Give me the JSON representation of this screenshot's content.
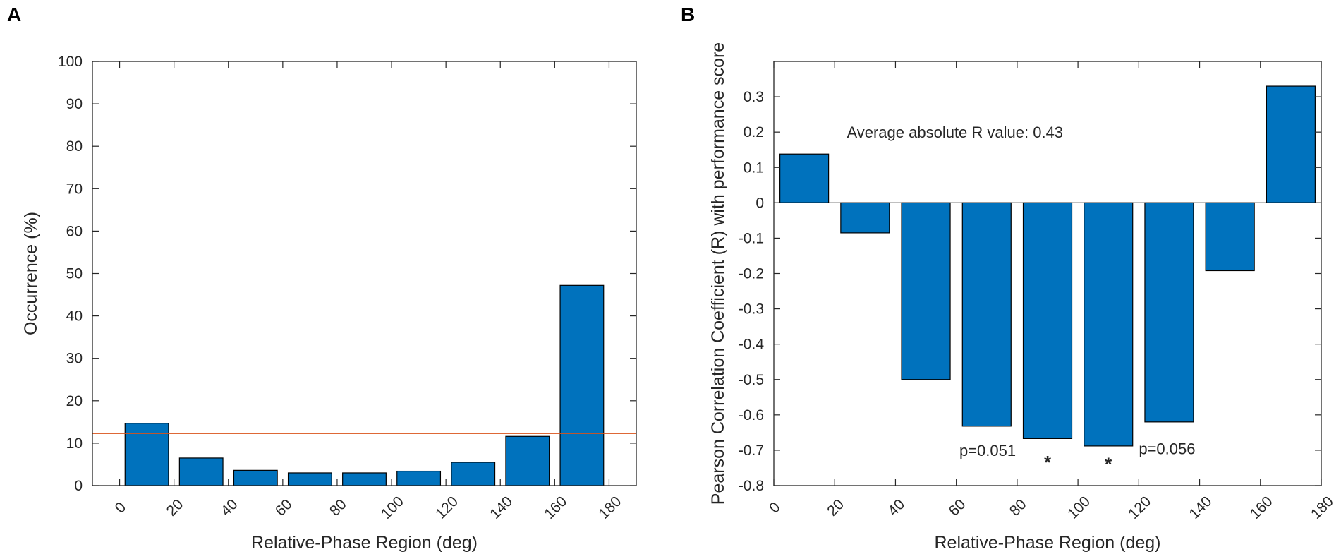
{
  "colors": {
    "bar": "#0072BD",
    "bar_edge": "#000000",
    "reference_line": "#D95319",
    "axis": "#262626"
  },
  "chart_data": [
    {
      "type": "bar",
      "panel_label": "A",
      "bin_centers": [
        10,
        30,
        50,
        70,
        90,
        110,
        130,
        150,
        170
      ],
      "values": [
        14.7,
        6.5,
        3.6,
        3.0,
        3.0,
        3.4,
        5.5,
        11.6,
        47.2
      ],
      "reference_line_y": 12.3,
      "xlabel": "Relative-Phase Region (deg)",
      "ylabel": "Occurrence (%)",
      "xlim": [
        -10,
        190
      ],
      "ylim": [
        0,
        100
      ],
      "xticks": [
        0,
        20,
        40,
        60,
        80,
        100,
        120,
        140,
        160,
        180
      ],
      "xtick_labels": [
        "0",
        "20",
        "40",
        "60",
        "80",
        "100",
        "120",
        "140",
        "160",
        "180"
      ],
      "yticks": [
        0,
        10,
        20,
        30,
        40,
        50,
        60,
        70,
        80,
        90,
        100
      ],
      "ytick_labels": [
        "0",
        "10",
        "20",
        "30",
        "40",
        "50",
        "60",
        "70",
        "80",
        "90",
        "100"
      ]
    },
    {
      "type": "bar",
      "panel_label": "B",
      "bin_centers": [
        10,
        30,
        50,
        70,
        90,
        110,
        130,
        150,
        170
      ],
      "values": [
        0.138,
        -0.085,
        -0.5,
        -0.632,
        -0.667,
        -0.688,
        -0.62,
        -0.192,
        0.33
      ],
      "xlabel": "Relative-Phase Region (deg)",
      "ylabel": "Pearson Correlation Coefficient (R) with performance score",
      "xlim": [
        0,
        180
      ],
      "ylim": [
        -0.8,
        0.4
      ],
      "xticks": [
        0,
        20,
        40,
        60,
        80,
        100,
        120,
        140,
        160,
        180
      ],
      "xtick_labels": [
        "0",
        "20",
        "40",
        "60",
        "80",
        "100",
        "120",
        "140",
        "160",
        "180"
      ],
      "yticks": [
        0.3,
        0.2,
        0.1,
        0,
        -0.1,
        -0.2,
        -0.3,
        -0.4,
        -0.5,
        -0.6,
        -0.7,
        -0.8
      ],
      "ytick_labels": [
        "0.3",
        "0.2",
        "0.1",
        "0",
        "-0.1",
        "-0.2",
        "-0.3",
        "-0.4",
        "-0.5",
        "-0.6",
        "-0.7",
        "-0.8"
      ],
      "annotations": [
        {
          "text": "Average absolute R value: 0.43",
          "x": 24,
          "y": 0.2
        },
        {
          "text": "p=0.051",
          "x": 61,
          "y": -0.7
        },
        {
          "text": "*",
          "x": 90,
          "y": -0.72
        },
        {
          "text": "*",
          "x": 110,
          "y": -0.725
        },
        {
          "text": "p=0.056",
          "x": 120,
          "y": -0.695
        }
      ]
    }
  ]
}
